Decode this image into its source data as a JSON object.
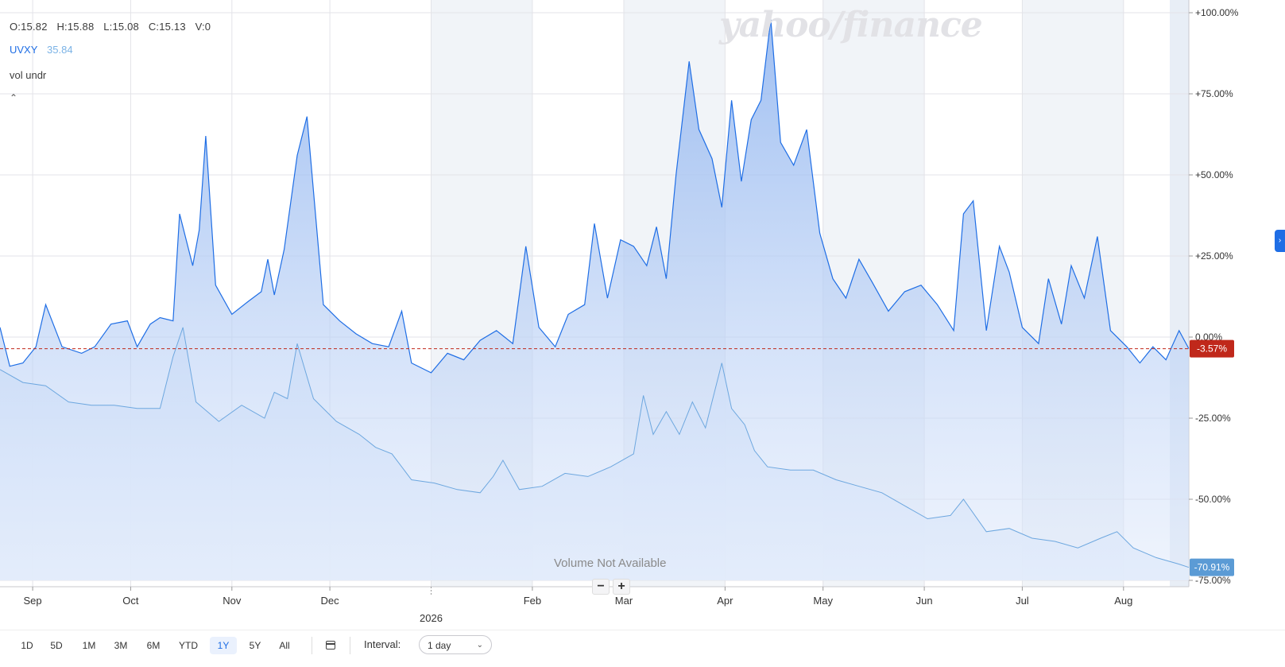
{
  "ohlc": {
    "open": "O:15.82",
    "high": "H:15.88",
    "low": "L:15.08",
    "close": "C:15.13",
    "volume": "V:0"
  },
  "legend": {
    "symbol": "UVXY",
    "value": "35.84",
    "study": "vol undr"
  },
  "watermark": "yahoo/finance",
  "volume_note": "Volume Not Available",
  "zoom": {
    "minus": "−",
    "plus": "+"
  },
  "ranges": [
    "1D",
    "5D",
    "1M",
    "3M",
    "6M",
    "YTD",
    "1Y",
    "5Y",
    "All"
  ],
  "active_range": "1Y",
  "interval": {
    "label": "Interval:",
    "value": "1 day"
  },
  "icons": {
    "calendar": "calendar-icon",
    "collapse": "chevron-up-icon",
    "side": "chevron-right-icon"
  },
  "colors": {
    "primary": "#1f6ee5",
    "secondary": "#6da7df",
    "last_marker": "#c0281b",
    "compare_marker": "#5b9bd5"
  },
  "chart_data": {
    "type": "area",
    "ylim": [
      -75,
      100
    ],
    "ytick_labels": [
      "+100.00%",
      "+75.00%",
      "+50.00%",
      "+25.00%",
      "0.00%",
      "-25.00%",
      "-50.00%",
      "-75.00%"
    ],
    "ytick_values": [
      100,
      75,
      50,
      25,
      0,
      -25,
      -50,
      -75
    ],
    "xtick_labels": [
      "Sep",
      "Oct",
      "Nov",
      "Dec",
      "2026",
      "Feb",
      "Mar",
      "Apr",
      "May",
      "Jun",
      "Jul",
      "Aug"
    ],
    "xtick_dates": [
      "2025-09-01",
      "2025-10-01",
      "2025-11-01",
      "2025-12-01",
      "2026-01-01",
      "2026-02-01",
      "2026-03-01",
      "2026-04-01",
      "2026-05-01",
      "2026-06-01",
      "2026-07-01",
      "2026-08-01"
    ],
    "x_range": [
      "2025-08-22",
      "2026-08-21"
    ],
    "series": [
      {
        "name": "UVXY",
        "last_label": "-70.91%",
        "points": [
          [
            "2025-08-22",
            -10
          ],
          [
            "2025-08-29",
            -14
          ],
          [
            "2025-09-05",
            -15
          ],
          [
            "2025-09-12",
            -20
          ],
          [
            "2025-09-19",
            -21
          ],
          [
            "2025-09-26",
            -21
          ],
          [
            "2025-10-03",
            -22
          ],
          [
            "2025-10-10",
            -22
          ],
          [
            "2025-10-14",
            -6
          ],
          [
            "2025-10-17",
            3
          ],
          [
            "2025-10-21",
            -20
          ],
          [
            "2025-10-28",
            -26
          ],
          [
            "2025-11-04",
            -21
          ],
          [
            "2025-11-11",
            -25
          ],
          [
            "2025-11-14",
            -17
          ],
          [
            "2025-11-18",
            -19
          ],
          [
            "2025-11-21",
            -2
          ],
          [
            "2025-11-26",
            -19
          ],
          [
            "2025-12-03",
            -26
          ],
          [
            "2025-12-10",
            -30
          ],
          [
            "2025-12-15",
            -34
          ],
          [
            "2025-12-20",
            -36
          ],
          [
            "2025-12-26",
            -44
          ],
          [
            "2026-01-02",
            -45
          ],
          [
            "2026-01-09",
            -47
          ],
          [
            "2026-01-16",
            -48
          ],
          [
            "2026-01-20",
            -43
          ],
          [
            "2026-01-23",
            -38
          ],
          [
            "2026-01-28",
            -47
          ],
          [
            "2026-02-04",
            -46
          ],
          [
            "2026-02-11",
            -42
          ],
          [
            "2026-02-18",
            -43
          ],
          [
            "2026-02-25",
            -40
          ],
          [
            "2026-03-04",
            -36
          ],
          [
            "2026-03-07",
            -18
          ],
          [
            "2026-03-10",
            -30
          ],
          [
            "2026-03-14",
            -23
          ],
          [
            "2026-03-18",
            -30
          ],
          [
            "2026-03-22",
            -20
          ],
          [
            "2026-03-26",
            -28
          ],
          [
            "2026-03-31",
            -8
          ],
          [
            "2026-04-03",
            -22
          ],
          [
            "2026-04-07",
            -27
          ],
          [
            "2026-04-10",
            -35
          ],
          [
            "2026-04-14",
            -40
          ],
          [
            "2026-04-21",
            -41
          ],
          [
            "2026-04-28",
            -41
          ],
          [
            "2026-05-05",
            -44
          ],
          [
            "2026-05-12",
            -46
          ],
          [
            "2026-05-19",
            -48
          ],
          [
            "2026-05-26",
            -52
          ],
          [
            "2026-06-02",
            -56
          ],
          [
            "2026-06-09",
            -55
          ],
          [
            "2026-06-13",
            -50
          ],
          [
            "2026-06-20",
            -60
          ],
          [
            "2026-06-27",
            -59
          ],
          [
            "2026-07-04",
            -62
          ],
          [
            "2026-07-11",
            -63
          ],
          [
            "2026-07-18",
            -65
          ],
          [
            "2026-07-25",
            -62
          ],
          [
            "2026-07-30",
            -60
          ],
          [
            "2026-08-04",
            -65
          ],
          [
            "2026-08-11",
            -68
          ],
          [
            "2026-08-18",
            -70
          ],
          [
            "2026-08-21",
            -71
          ]
        ]
      },
      {
        "name": "vol undr",
        "last_label": "-3.57%",
        "points": [
          [
            "2025-08-22",
            3
          ],
          [
            "2025-08-25",
            -9
          ],
          [
            "2025-08-29",
            -8
          ],
          [
            "2025-09-02",
            -3
          ],
          [
            "2025-09-05",
            10
          ],
          [
            "2025-09-10",
            -3
          ],
          [
            "2025-09-16",
            -5
          ],
          [
            "2025-09-20",
            -3
          ],
          [
            "2025-09-25",
            4
          ],
          [
            "2025-09-30",
            5
          ],
          [
            "2025-10-03",
            -3
          ],
          [
            "2025-10-07",
            4
          ],
          [
            "2025-10-10",
            6
          ],
          [
            "2025-10-14",
            5
          ],
          [
            "2025-10-16",
            38
          ],
          [
            "2025-10-20",
            22
          ],
          [
            "2025-10-22",
            33
          ],
          [
            "2025-10-24",
            62
          ],
          [
            "2025-10-27",
            16
          ],
          [
            "2025-11-01",
            7
          ],
          [
            "2025-11-06",
            11
          ],
          [
            "2025-11-10",
            14
          ],
          [
            "2025-11-12",
            24
          ],
          [
            "2025-11-14",
            13
          ],
          [
            "2025-11-17",
            27
          ],
          [
            "2025-11-21",
            56
          ],
          [
            "2025-11-24",
            68
          ],
          [
            "2025-11-29",
            10
          ],
          [
            "2025-12-04",
            5
          ],
          [
            "2025-12-09",
            1
          ],
          [
            "2025-12-14",
            -2
          ],
          [
            "2025-12-19",
            -3
          ],
          [
            "2025-12-23",
            8
          ],
          [
            "2025-12-26",
            -8
          ],
          [
            "2026-01-01",
            -11
          ],
          [
            "2026-01-06",
            -5
          ],
          [
            "2026-01-11",
            -7
          ],
          [
            "2026-01-16",
            -1
          ],
          [
            "2026-01-21",
            2
          ],
          [
            "2026-01-26",
            -2
          ],
          [
            "2026-01-30",
            28
          ],
          [
            "2026-02-03",
            3
          ],
          [
            "2026-02-08",
            -3
          ],
          [
            "2026-02-12",
            7
          ],
          [
            "2026-02-17",
            10
          ],
          [
            "2026-02-20",
            35
          ],
          [
            "2026-02-24",
            12
          ],
          [
            "2026-02-28",
            30
          ],
          [
            "2026-03-04",
            28
          ],
          [
            "2026-03-08",
            22
          ],
          [
            "2026-03-11",
            34
          ],
          [
            "2026-03-14",
            18
          ],
          [
            "2026-03-17",
            50
          ],
          [
            "2026-03-21",
            85
          ],
          [
            "2026-03-24",
            64
          ],
          [
            "2026-03-28",
            55
          ],
          [
            "2026-03-31",
            40
          ],
          [
            "2026-04-03",
            73
          ],
          [
            "2026-04-06",
            48
          ],
          [
            "2026-04-09",
            67
          ],
          [
            "2026-04-12",
            73
          ],
          [
            "2026-04-15",
            98
          ],
          [
            "2026-04-18",
            60
          ],
          [
            "2026-04-22",
            53
          ],
          [
            "2026-04-26",
            64
          ],
          [
            "2026-04-30",
            32
          ],
          [
            "2026-05-04",
            18
          ],
          [
            "2026-05-08",
            12
          ],
          [
            "2026-05-12",
            24
          ],
          [
            "2026-05-16",
            17
          ],
          [
            "2026-05-21",
            8
          ],
          [
            "2026-05-26",
            14
          ],
          [
            "2026-05-31",
            16
          ],
          [
            "2026-06-05",
            10
          ],
          [
            "2026-06-10",
            2
          ],
          [
            "2026-06-13",
            38
          ],
          [
            "2026-06-16",
            42
          ],
          [
            "2026-06-20",
            2
          ],
          [
            "2026-06-24",
            28
          ],
          [
            "2026-06-27",
            20
          ],
          [
            "2026-07-01",
            3
          ],
          [
            "2026-07-06",
            -2
          ],
          [
            "2026-07-09",
            18
          ],
          [
            "2026-07-13",
            4
          ],
          [
            "2026-07-16",
            22
          ],
          [
            "2026-07-20",
            12
          ],
          [
            "2026-07-24",
            31
          ],
          [
            "2026-07-28",
            2
          ],
          [
            "2026-08-02",
            -3
          ],
          [
            "2026-08-06",
            -8
          ],
          [
            "2026-08-10",
            -3
          ],
          [
            "2026-08-14",
            -7
          ],
          [
            "2026-08-18",
            2
          ],
          [
            "2026-08-21",
            -3.57
          ]
        ]
      }
    ]
  }
}
